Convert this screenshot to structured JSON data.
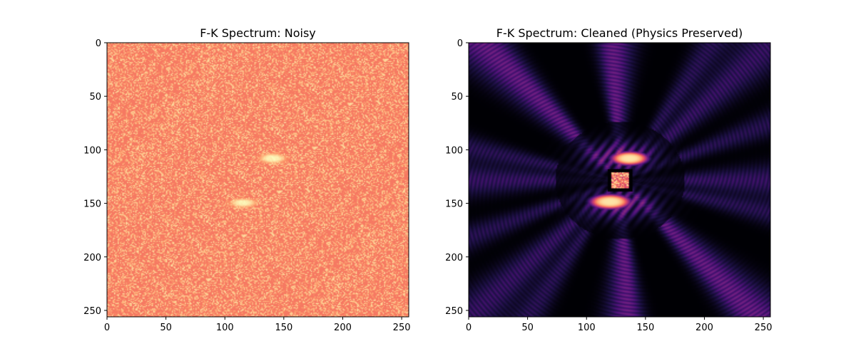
{
  "chart_data": [
    {
      "type": "heatmap",
      "title": "F-K Spectrum: Noisy",
      "colormap": "magma",
      "image_size": [
        256,
        256
      ],
      "xlim": [
        0,
        256
      ],
      "ylim": [
        256,
        0
      ],
      "xticks": [
        0,
        50,
        100,
        150,
        200,
        250
      ],
      "yticks": [
        0,
        50,
        100,
        150,
        200,
        250
      ],
      "x_tick_labels": [
        "0",
        "50",
        "100",
        "150",
        "200",
        "250"
      ],
      "y_tick_labels": [
        "0",
        "50",
        "100",
        "150",
        "200",
        "250"
      ],
      "background_level": 0.72,
      "noise_amplitude": 0.22,
      "features": [
        {
          "kind": "bright-blob",
          "x_range": [
            129,
            151
          ],
          "y_range": [
            103,
            112
          ]
        },
        {
          "kind": "bright-blob",
          "x_range": [
            104,
            126
          ],
          "y_range": [
            145,
            153
          ]
        }
      ]
    },
    {
      "type": "heatmap",
      "title": "F-K Spectrum: Cleaned (Physics Preserved)",
      "colormap": "magma",
      "image_size": [
        256,
        256
      ],
      "xlim": [
        0,
        256
      ],
      "ylim": [
        256,
        0
      ],
      "xticks": [
        0,
        50,
        100,
        150,
        200,
        250
      ],
      "yticks": [
        0,
        50,
        100,
        150,
        200,
        250
      ],
      "x_tick_labels": [
        "0",
        "50",
        "100",
        "150",
        "200",
        "250"
      ],
      "y_tick_labels": [
        "0",
        "50",
        "100",
        "150",
        "200",
        "250"
      ],
      "background_level": 0.0,
      "features": [
        {
          "kind": "bright-blob",
          "x_range": [
            120,
            152
          ],
          "y_range": [
            101,
            114
          ]
        },
        {
          "kind": "bright-blob",
          "x_range": [
            102,
            137
          ],
          "y_range": [
            141,
            155
          ]
        },
        {
          "kind": "noise-square",
          "x_range": [
            121,
            135
          ],
          "y_range": [
            121,
            135
          ]
        },
        {
          "kind": "radial-streaks",
          "center": [
            128,
            128
          ]
        }
      ]
    }
  ]
}
